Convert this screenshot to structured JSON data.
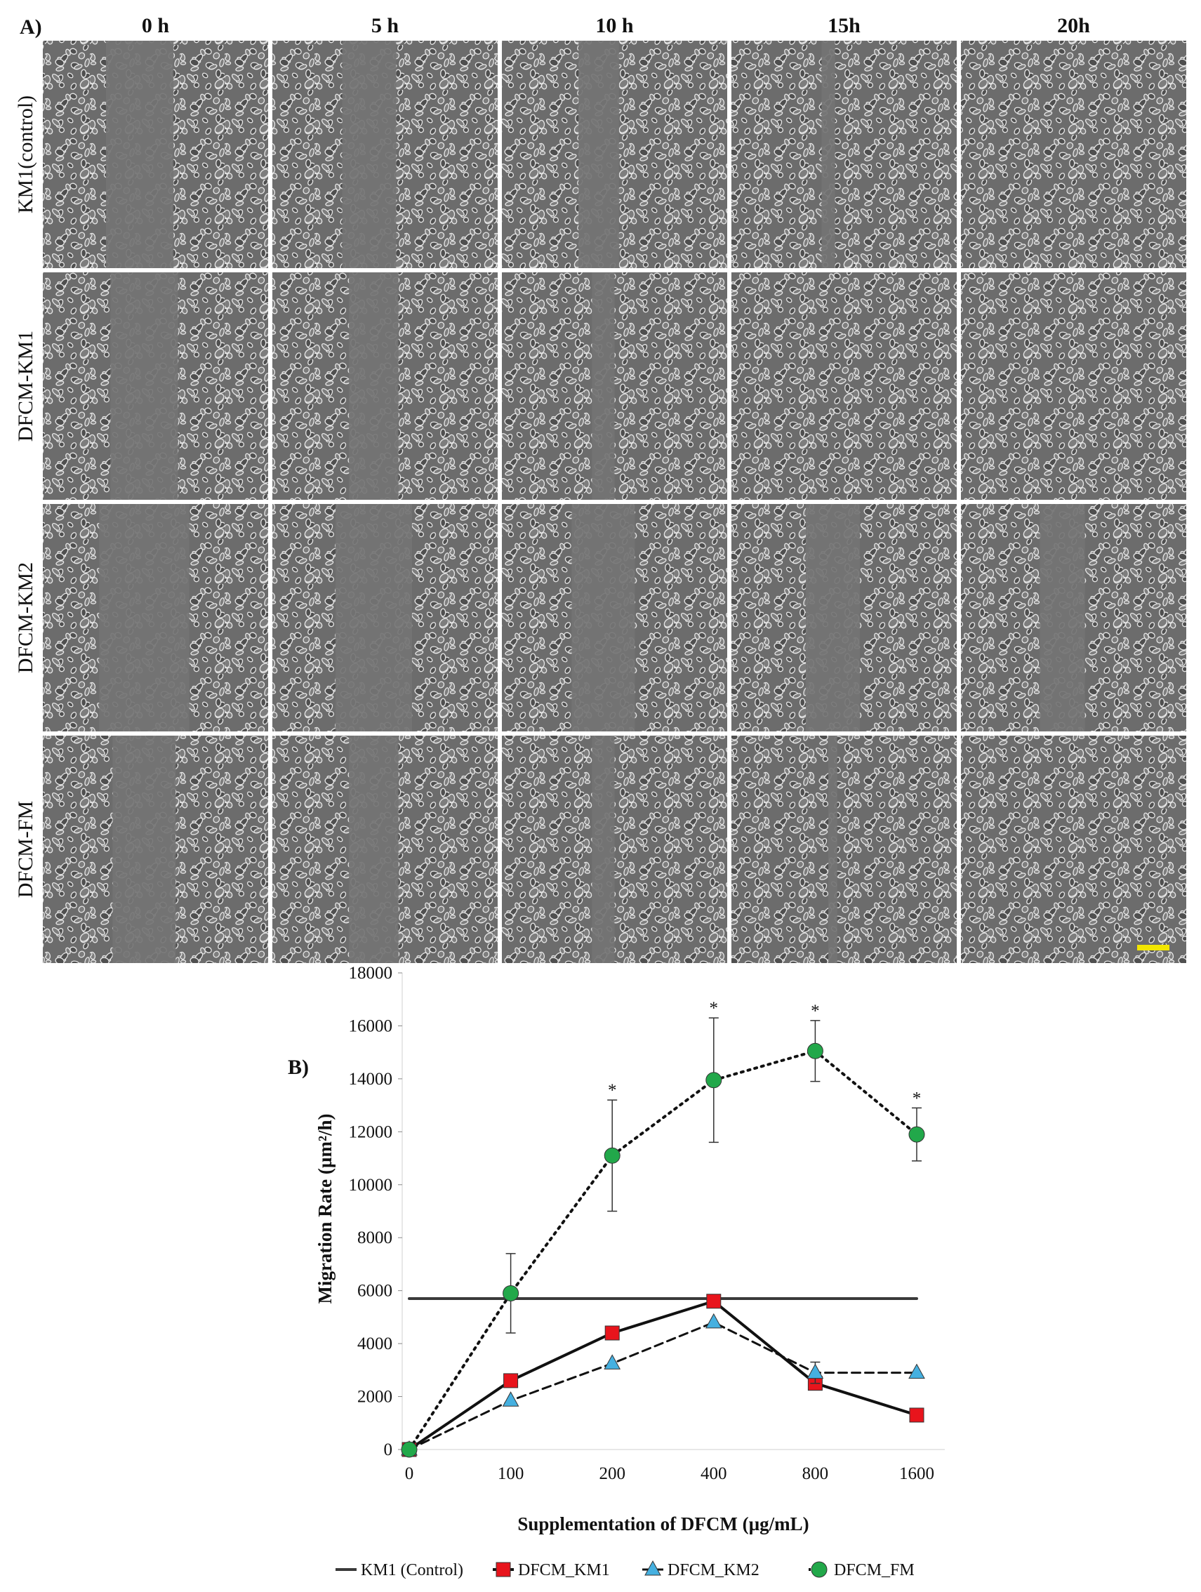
{
  "panel_a": {
    "label": "A)",
    "columns": [
      "0 h",
      "5 h",
      "10 h",
      "15h",
      "20h"
    ],
    "rows": [
      "KM1(control)",
      "DFCM-KM1",
      "DFCM-KM2",
      "DFCM-FM"
    ]
  },
  "chart_data": {
    "type": "line",
    "panel_label": "B)",
    "x_label": "Supplementation of DFCM (µg/mL)",
    "y_label": "Migration Rate (µm²/h)",
    "categories": [
      "0",
      "100",
      "200",
      "400",
      "800",
      "1600"
    ],
    "ylim": [
      0,
      18000
    ],
    "yticks": [
      0,
      2000,
      4000,
      6000,
      8000,
      10000,
      12000,
      14000,
      16000,
      18000
    ],
    "series": [
      {
        "name": "KM1 (Control)",
        "color": "#3a3a3a",
        "dash": "solid",
        "marker": "none",
        "values": [
          5700,
          5700,
          5700,
          5700,
          5700,
          5700
        ]
      },
      {
        "name": "DFCM_KM1",
        "color": "#e8141c",
        "dash": "solid",
        "marker": "square",
        "values": [
          0,
          2600,
          4400,
          5600,
          2500,
          1300
        ]
      },
      {
        "name": "DFCM_KM2",
        "color": "#45b0e0",
        "dash": "dash",
        "marker": "triangle",
        "values": [
          0,
          1850,
          3250,
          4800,
          2900,
          2900
        ],
        "errors": [
          null,
          null,
          null,
          null,
          400,
          null
        ]
      },
      {
        "name": "DFCM_FM",
        "color": "#22a84a",
        "dash": "dot",
        "marker": "circle",
        "values": [
          0,
          5900,
          11100,
          13950,
          15050,
          11900
        ],
        "errors": [
          null,
          1500,
          2100,
          2350,
          1150,
          1000
        ]
      }
    ],
    "significance": [
      null,
      null,
      "*",
      "*",
      "*",
      "*"
    ],
    "legend": "bottom"
  }
}
